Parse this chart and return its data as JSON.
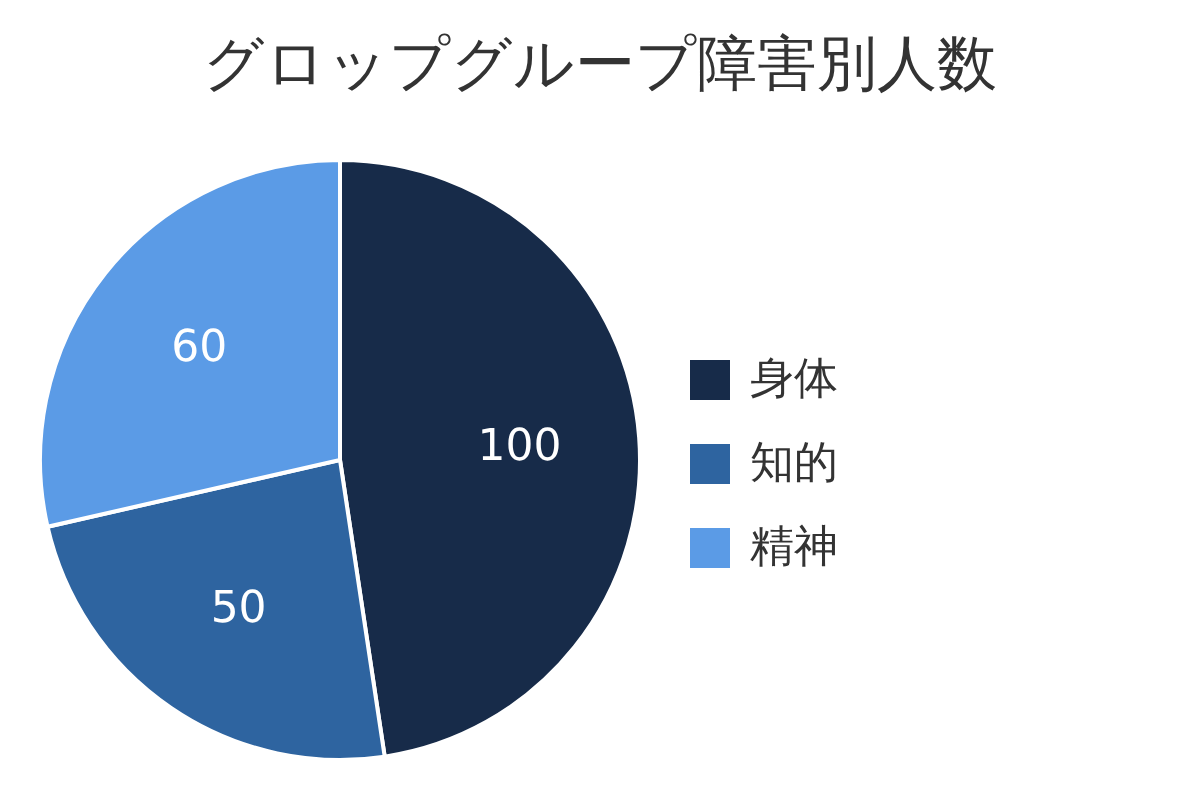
{
  "chart_data": {
    "type": "pie",
    "title": "グロップグループ障害別人数",
    "categories": [
      "身体",
      "知的",
      "精神"
    ],
    "values": [
      100,
      50,
      60
    ],
    "colors": [
      "#172b49",
      "#2e64a0",
      "#5b9be6"
    ],
    "data_labels": true,
    "legend": "right"
  }
}
